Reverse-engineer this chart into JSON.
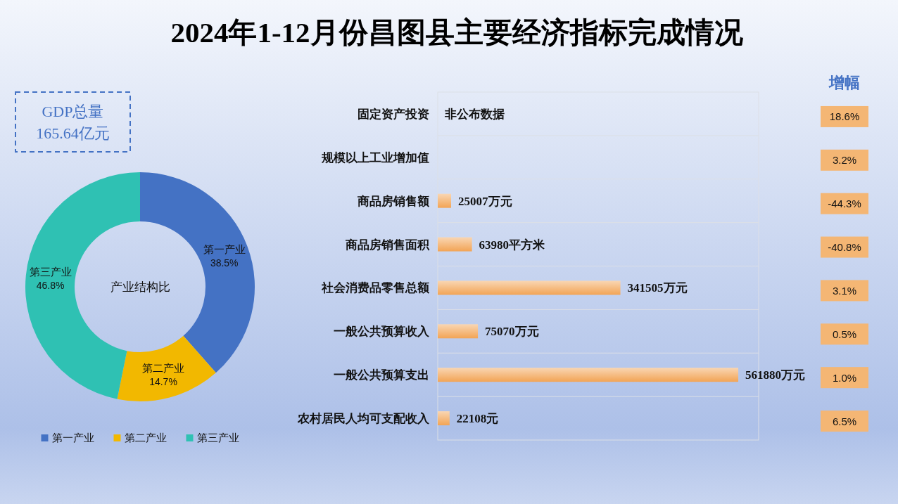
{
  "chart_data": [
    {
      "type": "other",
      "title": "2024年1-12月份昌图县主要经济指标完成情况",
      "annotations": [
        "GDP总量",
        "165.64亿元"
      ]
    },
    {
      "type": "donut",
      "title": "产业结构比",
      "categories": [
        "第一产业",
        "第二产业",
        "第三产业"
      ],
      "values": [
        38.5,
        14.7,
        46.8
      ],
      "colors": [
        "#4472c4",
        "#f2b800",
        "#2fc1b3"
      ],
      "value_labels": [
        "38.5%",
        "14.7%",
        "46.8%"
      ],
      "legend": "bottom"
    },
    {
      "type": "bar",
      "orientation": "horizontal",
      "categories": [
        "固定资产投资",
        "规模以上工业增加值",
        "商品房销售额",
        "商品房销售面积",
        "社会消费品零售总额",
        "一般公共预算收入",
        "一般公共预算支出",
        "农村居民人均可支配收入"
      ],
      "values": [
        null,
        null,
        25007,
        63980,
        341505,
        75070,
        561880,
        22108
      ],
      "value_labels": [
        "非公布数据",
        null,
        "25007万元",
        "63980平方米",
        "341505万元",
        "75070万元",
        "561880万元",
        "22108元"
      ],
      "color": "#f2a455",
      "xlim": [
        0,
        600000
      ],
      "grid": "y",
      "tick_labels": "y"
    },
    {
      "type": "other",
      "title": "增幅",
      "values": [
        18.6,
        3.2,
        -44.3,
        -40.8,
        3.1,
        0.5,
        1.0,
        6.5
      ],
      "value_labels": [
        "18.6%",
        "3.2%",
        "-44.3%",
        "-40.8%",
        "3.1%",
        "0.5%",
        "1.0%",
        "6.5%"
      ],
      "color": "#f4b674"
    }
  ]
}
